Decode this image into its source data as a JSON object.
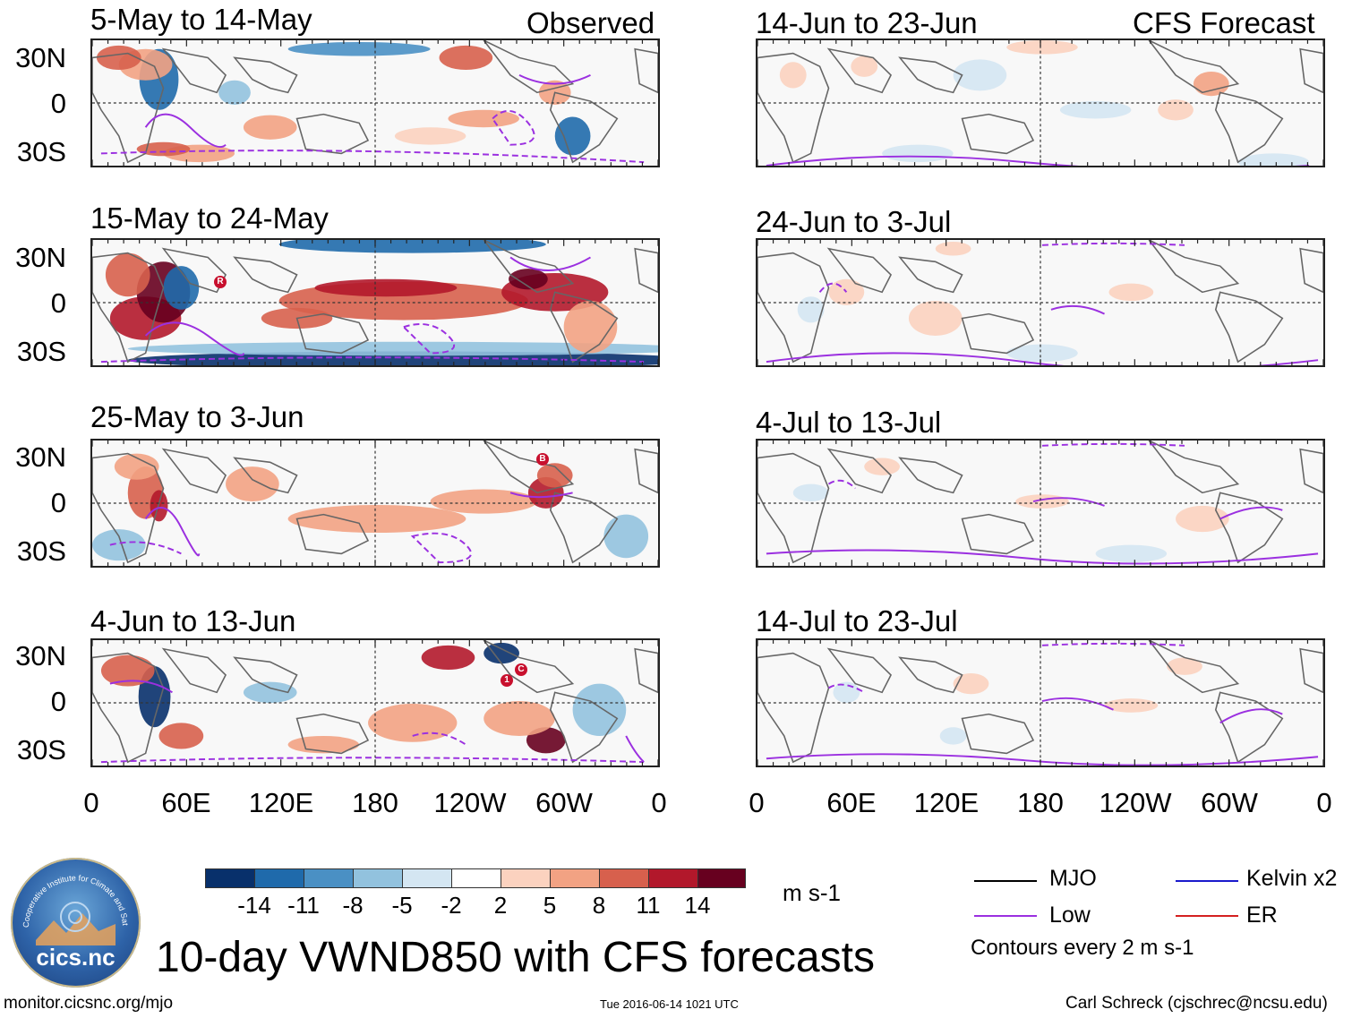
{
  "header": {
    "observed_label": "Observed",
    "forecast_label": "CFS Forecast"
  },
  "panels_observed": [
    {
      "title": "5-May to 14-May"
    },
    {
      "title": "15-May to 24-May"
    },
    {
      "title": "25-May to 3-Jun"
    },
    {
      "title": "4-Jun to 13-Jun"
    }
  ],
  "panels_forecast": [
    {
      "title": "14-Jun to 23-Jun"
    },
    {
      "title": "24-Jun to 3-Jul"
    },
    {
      "title": "4-Jul to 13-Jul"
    },
    {
      "title": "14-Jul to 23-Jul"
    }
  ],
  "lat_labels": [
    "30N",
    "0",
    "30S"
  ],
  "lon_labels": [
    "0",
    "60E",
    "120E",
    "180",
    "120W",
    "60W",
    "0"
  ],
  "colorbar": {
    "ticks": [
      "-14",
      "-11",
      "-8",
      "-5",
      "-2",
      "2",
      "5",
      "8",
      "11",
      "14"
    ],
    "colors": [
      "#08306b",
      "#1f6aab",
      "#4a90c4",
      "#92c2de",
      "#d4e6f2",
      "#ffffff",
      "#fbd2bf",
      "#f2a283",
      "#d7604d",
      "#b2182b",
      "#67001f"
    ],
    "units": "m s-1"
  },
  "legend": {
    "mjo": "MJO",
    "kelvin": "Kelvin x2",
    "low": "Low",
    "er": "ER",
    "contours": "Contours every 2 m s-1",
    "colors": {
      "mjo": "#000000",
      "kelvin": "#1a1acc",
      "low": "#9b30e0",
      "er": "#d42020"
    }
  },
  "markers": [
    {
      "panel": "15-May to 24-May",
      "label": "R"
    },
    {
      "panel": "25-May to 3-Jun",
      "label": "B"
    },
    {
      "panel": "4-Jun to 13-Jun",
      "label": "1"
    },
    {
      "panel": "4-Jun to 13-Jun",
      "label": "C"
    }
  ],
  "logo": {
    "text": "cics.nc",
    "ring_text": "Cooperative Institute for Climate and Satellites"
  },
  "footer": {
    "main_title": "10-day VWND850 with CFS forecasts",
    "url": "monitor.cicsnc.org/mjo",
    "timestamp": "Tue 2016-06-14 1021 UTC",
    "author": "Carl Schreck (cjschrec@ncsu.edu)"
  }
}
